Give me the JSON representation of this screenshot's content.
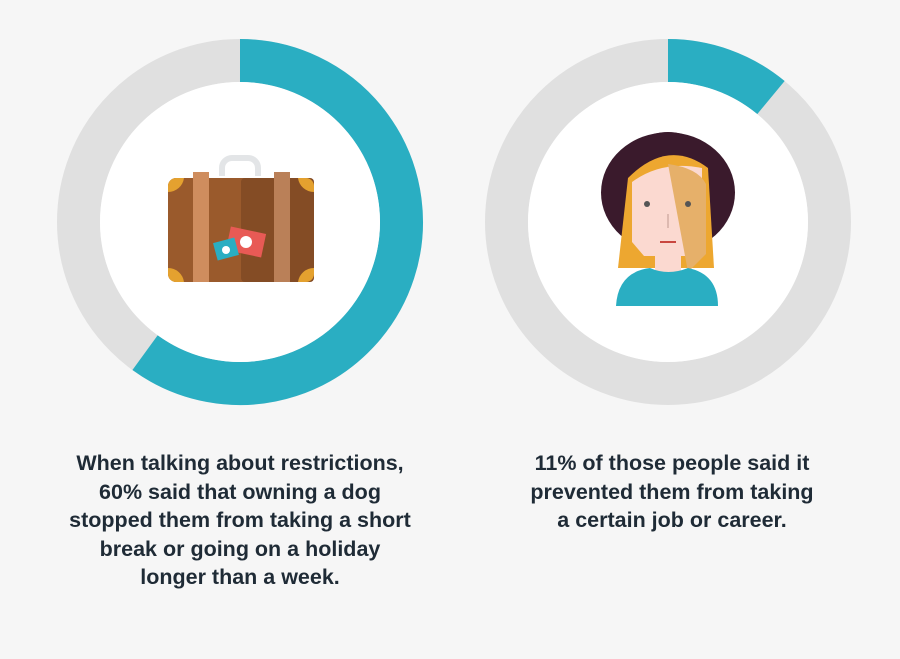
{
  "colors": {
    "background": "#f6f6f6",
    "ring_track": "#e0e0e0",
    "ring_fill": "#2aaec2",
    "text": "#1f2b36"
  },
  "chart_data": [
    {
      "type": "pie",
      "style": "donut",
      "values": [
        60
      ],
      "max": 100,
      "icon": "suitcase-icon",
      "caption_lines": [
        "When talking about restrictions,",
        "60% said that owning a dog",
        "stopped them from taking a short",
        "break or going on a holiday",
        "longer than a week."
      ]
    },
    {
      "type": "pie",
      "style": "donut",
      "values": [
        11
      ],
      "max": 100,
      "icon": "woman-avatar-icon",
      "caption_lines": [
        "11% of those people said it",
        "prevented them from taking",
        "a certain job or career."
      ]
    }
  ]
}
